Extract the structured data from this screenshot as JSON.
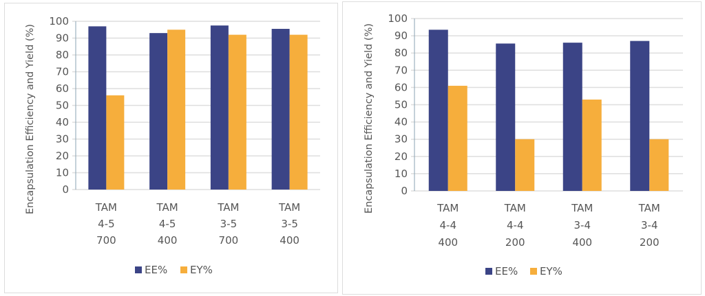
{
  "colors": {
    "EE": "#3b4486",
    "EY": "#f6ae3c",
    "grid": "#dedede",
    "axis": "#8aa3b3"
  },
  "chart_data": [
    {
      "type": "bar",
      "ylabel": "Encapsulation Efficiency and Yield (%)",
      "xlabel": "",
      "ylim": [
        0,
        100
      ],
      "yticks": [
        "0",
        "10",
        "20",
        "30",
        "40",
        "50",
        "60",
        "70",
        "80",
        "90",
        "100"
      ],
      "grid": true,
      "legend_position": "bottom",
      "categories": [
        [
          "TAM",
          "4-5",
          "700"
        ],
        [
          "TAM",
          "4-5",
          "400"
        ],
        [
          "TAM",
          "3-5",
          "700"
        ],
        [
          "TAM",
          "3-5",
          "400"
        ]
      ],
      "series": [
        {
          "name": "EE%",
          "values": [
            97,
            93,
            97.5,
            95.5
          ]
        },
        {
          "name": "EY%",
          "values": [
            56,
            95,
            92,
            92
          ]
        }
      ]
    },
    {
      "type": "bar",
      "ylabel": "Encapsulation Efficiency and Yield (%)",
      "xlabel": "",
      "ylim": [
        0,
        100
      ],
      "yticks": [
        "0",
        "10",
        "20",
        "30",
        "40",
        "50",
        "60",
        "70",
        "80",
        "90",
        "100"
      ],
      "grid": true,
      "legend_position": "bottom",
      "categories": [
        [
          "TAM",
          "4-4",
          "400"
        ],
        [
          "TAM",
          "4-4",
          "200"
        ],
        [
          "TAM",
          "3-4",
          "400"
        ],
        [
          "TAM",
          "3-4",
          "200"
        ]
      ],
      "series": [
        {
          "name": "EE%",
          "values": [
            93.5,
            85.5,
            86,
            87
          ]
        },
        {
          "name": "EY%",
          "values": [
            61,
            30,
            53,
            30
          ]
        }
      ]
    }
  ]
}
